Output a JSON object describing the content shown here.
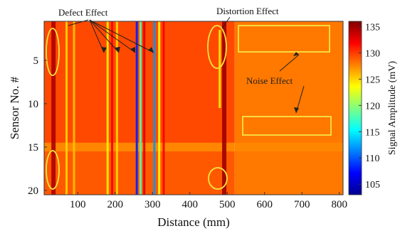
{
  "chart_data": {
    "type": "heatmap",
    "title": "",
    "xlabel": "Distance (mm)",
    "ylabel": "Sensor No. #",
    "colorbar_label": "Signal Amplitude (mV)",
    "xlim": [
      10,
      810
    ],
    "ylim": [
      1,
      20
    ],
    "x_ticks": [
      100,
      200,
      300,
      400,
      500,
      600,
      700,
      800
    ],
    "y_ticks": [
      5,
      10,
      15,
      20
    ],
    "color_range": [
      103,
      136
    ],
    "colorbar_ticks": [
      105,
      110,
      115,
      120,
      125,
      130,
      135
    ],
    "colormap": "jet",
    "background_level": 128.5,
    "row_values_mV": {
      "rows_1_15_left_of_520mm": 129.5,
      "row_15": 127.5,
      "rows_16_20_left_of_520mm": 129.0,
      "rows_1_20_right_of_520mm": 128.0
    },
    "vertical_streaks": [
      {
        "x": 35,
        "rows": [
          1,
          20
        ],
        "value": 134.5
      },
      {
        "x": 70,
        "rows": [
          1,
          20
        ],
        "value": 125
      },
      {
        "x": 90,
        "rows": [
          1,
          20
        ],
        "value": 125.5
      },
      {
        "x": 180,
        "rows": [
          1,
          20
        ],
        "value": 124
      },
      {
        "x": 192,
        "rows": [
          1,
          20
        ],
        "value": 132
      },
      {
        "x": 205,
        "rows": [
          1,
          20
        ],
        "value": 125
      },
      {
        "x": 258,
        "rows": [
          1,
          20
        ],
        "value": 108
      },
      {
        "x": 268,
        "rows": [
          1,
          20
        ],
        "value": 118
      },
      {
        "x": 278,
        "rows": [
          1,
          20
        ],
        "value": 133
      },
      {
        "x": 305,
        "rows": [
          1,
          20
        ],
        "value": 112
      },
      {
        "x": 318,
        "rows": [
          1,
          20
        ],
        "value": 123
      },
      {
        "x": 330,
        "rows": [
          1,
          20
        ],
        "value": 132
      },
      {
        "x": 480,
        "rows": [
          2,
          10
        ],
        "value": 124
      },
      {
        "x": 492,
        "rows": [
          1,
          20
        ],
        "value": 135
      }
    ],
    "annotations": [
      {
        "text": "Defect Effect",
        "type": "label"
      },
      {
        "text": "Distortion Effect",
        "type": "label"
      },
      {
        "text": "Noise Effect",
        "type": "label"
      }
    ]
  }
}
